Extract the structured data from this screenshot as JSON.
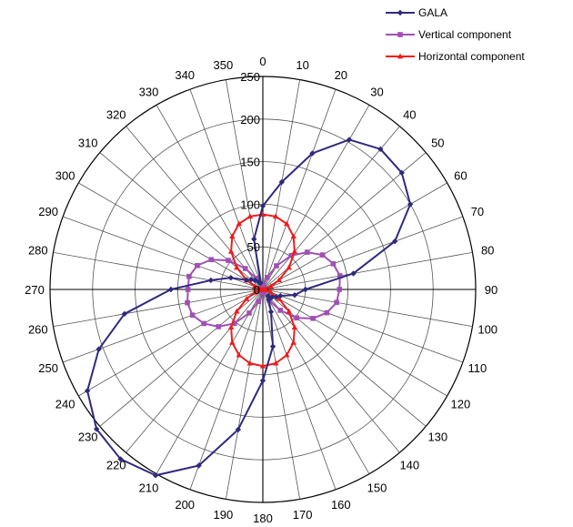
{
  "chart_data": {
    "type": "polar-line",
    "title": "",
    "angle_labels": [
      "0",
      "10",
      "20",
      "30",
      "40",
      "50",
      "60",
      "70",
      "80",
      "90",
      "100",
      "110",
      "120",
      "130",
      "140",
      "150",
      "160",
      "170",
      "180",
      "190",
      "200",
      "210",
      "220",
      "230",
      "240",
      "250",
      "260",
      "270",
      "280",
      "290",
      "300",
      "310",
      "320",
      "330",
      "340",
      "350"
    ],
    "radial_labels": [
      "0",
      "50",
      "100",
      "150",
      "200",
      "250"
    ],
    "radial_range": [
      0,
      250
    ],
    "angle_direction": "clockwise",
    "angle_zero": "top",
    "grid": true,
    "legend_position": "top-right",
    "angles": [
      0,
      10,
      20,
      30,
      40,
      50,
      60,
      70,
      80,
      90,
      100,
      110,
      120,
      130,
      140,
      150,
      160,
      170,
      180,
      190,
      200,
      210,
      220,
      230,
      240,
      250,
      260,
      270,
      280,
      290,
      300,
      310,
      320,
      330,
      340,
      350
    ],
    "series": [
      {
        "name": "GALA",
        "color": "#2f2a7e",
        "marker": "diamond",
        "values": [
          98,
          128,
          170,
          203,
          215,
          213,
          200,
          165,
          108,
          50,
          38,
          22,
          18,
          14,
          10,
          14,
          28,
          68,
          107,
          167,
          220,
          252,
          260,
          255,
          238,
          205,
          165,
          108,
          62,
          40,
          22,
          18,
          14,
          10,
          8,
          60
        ]
      },
      {
        "name": "Vertical component",
        "color": "#a050b4",
        "marker": "square",
        "values": [
          0,
          4,
          15,
          32,
          52,
          68,
          81,
          88,
          92,
          90,
          88,
          80,
          68,
          52,
          32,
          15,
          4,
          0,
          0,
          4,
          15,
          32,
          52,
          68,
          80,
          88,
          90,
          88,
          88,
          82,
          70,
          53,
          32,
          15,
          4,
          0
        ]
      },
      {
        "name": "Horizontal component",
        "color": "#ee1c1c",
        "marker": "triangle",
        "values": [
          88,
          87,
          82,
          72,
          58,
          40,
          22,
          10,
          3,
          0,
          3,
          10,
          22,
          40,
          58,
          72,
          82,
          88,
          90,
          88,
          82,
          72,
          58,
          40,
          22,
          10,
          3,
          0,
          3,
          10,
          22,
          40,
          58,
          72,
          82,
          87
        ]
      }
    ]
  }
}
